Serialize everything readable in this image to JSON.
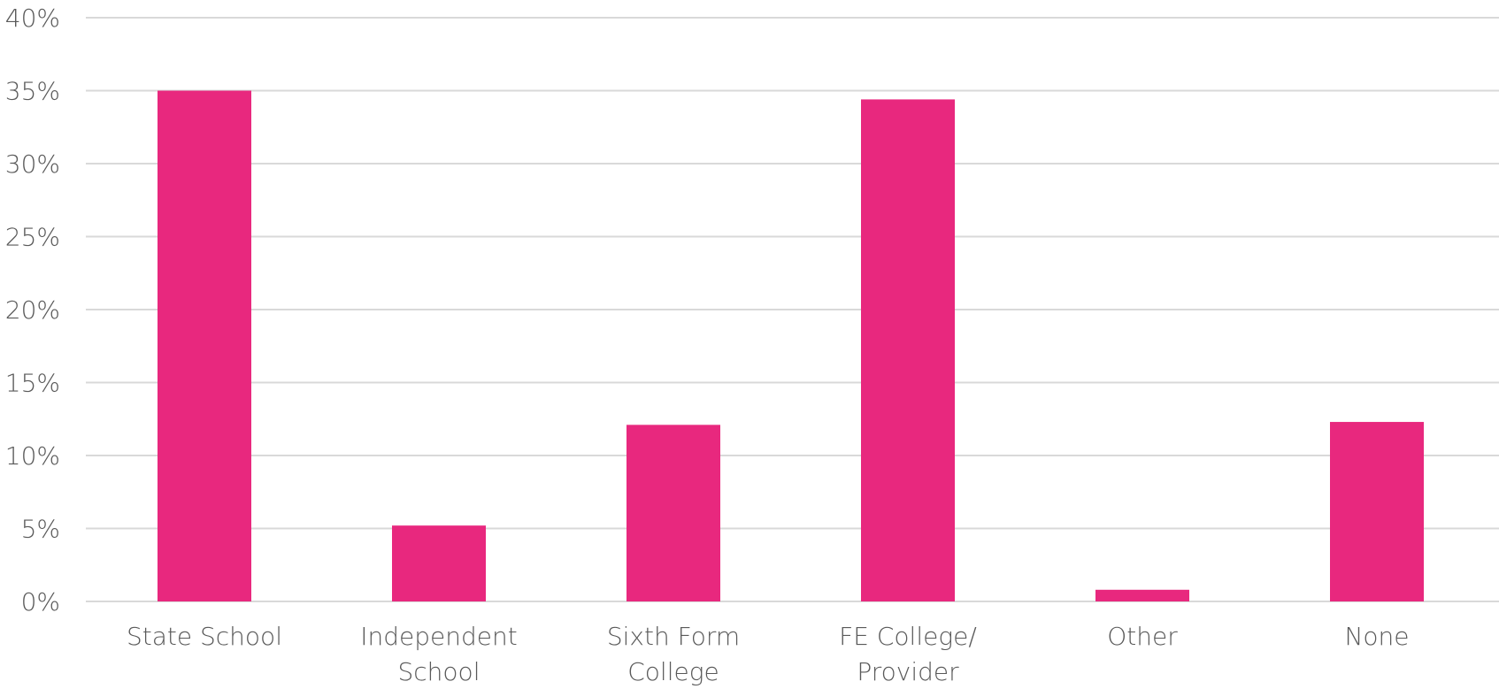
{
  "chart_data": {
    "type": "bar",
    "categories": [
      [
        "State School"
      ],
      [
        "Independent",
        "School"
      ],
      [
        "Sixth Form",
        "College"
      ],
      [
        "FE College/",
        "Provider"
      ],
      [
        "Other"
      ],
      [
        "None"
      ]
    ],
    "values": [
      35.0,
      5.2,
      12.1,
      34.4,
      0.8,
      12.3
    ],
    "ylim": [
      0,
      40
    ],
    "yticks": [
      0,
      5,
      10,
      15,
      20,
      25,
      30,
      35,
      40
    ],
    "ytick_labels": [
      "0%",
      "5%",
      "10%",
      "15%",
      "20%",
      "25%",
      "30%",
      "35%",
      "40%"
    ],
    "grid": true,
    "colors": {
      "bar": "#E8287E",
      "grid": "#D9D9D9",
      "text": "#595959"
    }
  }
}
